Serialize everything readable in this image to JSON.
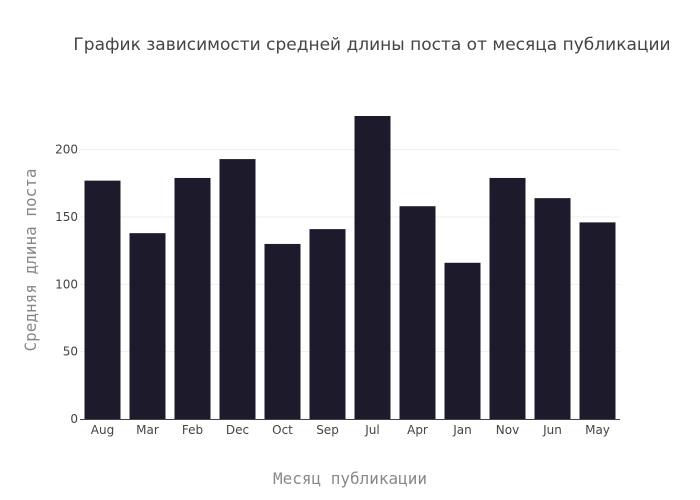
{
  "chart_data": {
    "type": "bar",
    "title": "График зависимости средней длины поста от месяца публикации",
    "xlabel": "Месяц публикации",
    "ylabel": "Средняя длина поста",
    "categories": [
      "Aug",
      "Mar",
      "Feb",
      "Dec",
      "Oct",
      "Sep",
      "Jul",
      "Apr",
      "Jan",
      "Nov",
      "Jun",
      "May"
    ],
    "values": [
      177,
      138,
      179,
      193,
      130,
      141,
      225,
      158,
      116,
      179,
      164,
      146
    ],
    "ylim": [
      0,
      225
    ],
    "yticks": [
      0,
      50,
      100,
      150,
      200
    ],
    "grid": true,
    "bar_color": "#1c1a2b"
  }
}
